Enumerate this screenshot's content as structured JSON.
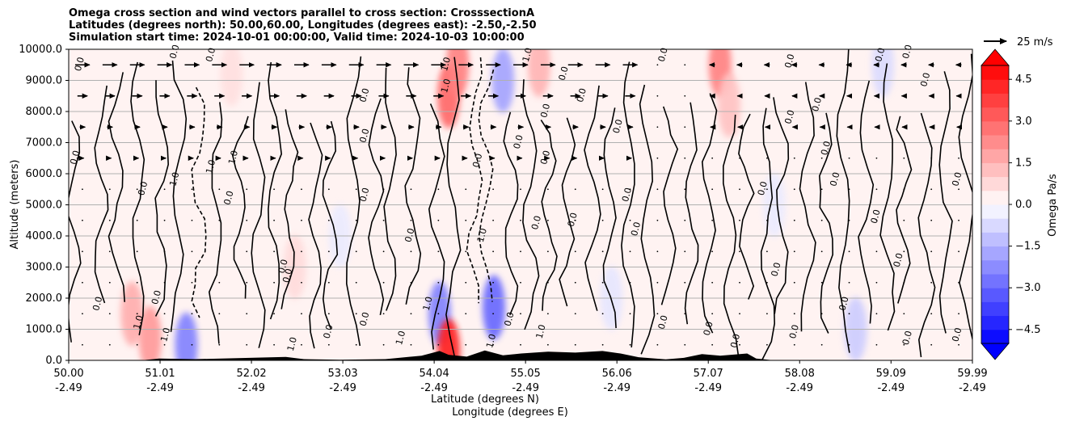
{
  "chart_data": {
    "type": "heatmap",
    "title_lines": [
      "Omega cross section and wind vectors parallel to cross section: CrosssectionA",
      "Latitudes (degrees north): 50.00,60.00, Longitudes (degrees east): -2.50,-2.50",
      "Simulation start time: 2024-10-01 00:00:00, Valid time: 2024-10-03 10:00:00"
    ],
    "xlabel_lines": [
      "Latitude (degrees N)",
      "Longitude (degrees E)"
    ],
    "ylabel": "Altitude (meters)",
    "x_range": [
      50.0,
      59.99
    ],
    "y_range": [
      0,
      10000
    ],
    "x_ticks": [
      {
        "lat": "50.00",
        "lon": "-2.49",
        "value": 50.0
      },
      {
        "lat": "51.01",
        "lon": "-2.49",
        "value": 51.01
      },
      {
        "lat": "52.02",
        "lon": "-2.49",
        "value": 52.02
      },
      {
        "lat": "53.03",
        "lon": "-2.49",
        "value": 53.03
      },
      {
        "lat": "54.04",
        "lon": "-2.49",
        "value": 54.04
      },
      {
        "lat": "55.05",
        "lon": "-2.49",
        "value": 55.05
      },
      {
        "lat": "56.06",
        "lon": "-2.49",
        "value": 56.06
      },
      {
        "lat": "57.07",
        "lon": "-2.49",
        "value": 57.07
      },
      {
        "lat": "58.08",
        "lon": "-2.49",
        "value": 58.08
      },
      {
        "lat": "59.09",
        "lon": "-2.49",
        "value": 59.09
      },
      {
        "lat": "59.99",
        "lon": "-2.49",
        "value": 59.99
      }
    ],
    "y_ticks": [
      {
        "label": "0.0",
        "value": 0
      },
      {
        "label": "1000.0",
        "value": 1000
      },
      {
        "label": "2000.0",
        "value": 2000
      },
      {
        "label": "3000.0",
        "value": 3000
      },
      {
        "label": "4000.0",
        "value": 4000
      },
      {
        "label": "5000.0",
        "value": 5000
      },
      {
        "label": "6000.0",
        "value": 6000
      },
      {
        "label": "7000.0",
        "value": 7000
      },
      {
        "label": "8000.0",
        "value": 8000
      },
      {
        "label": "9000.0",
        "value": 9000
      },
      {
        "label": "10000.0",
        "value": 10000
      }
    ],
    "colorbar": {
      "label": "Omega Pa/s",
      "range": [
        -5.0,
        5.0
      ],
      "ticks": [
        {
          "label": "4.5",
          "value": 4.5
        },
        {
          "label": "3.0",
          "value": 3.0
        },
        {
          "label": "1.5",
          "value": 1.5
        },
        {
          "label": "0.0",
          "value": 0.0
        },
        {
          "label": "−1.5",
          "value": -1.5
        },
        {
          "label": "−3.0",
          "value": -3.0
        },
        {
          "label": "−4.5",
          "value": -4.5
        }
      ],
      "colormap": "bwr",
      "levels": 20
    },
    "quiver_key": {
      "label": "25 m/s",
      "speed": 25
    },
    "wind_rows_altitude_m": [
      500,
      1500,
      2500,
      3500,
      4500,
      5500,
      6500,
      7500,
      8500,
      9500
    ],
    "wind_profile": [
      {
        "altitude": 9500,
        "u": 16,
        "from_lat": 50.0,
        "to_lat": 56.3
      },
      {
        "altitude": 9000,
        "u": 15,
        "from_lat": 50.0,
        "to_lat": 56.3
      },
      {
        "altitude": 8500,
        "u": 11,
        "from_lat": 50.0,
        "to_lat": 56.3
      },
      {
        "altitude": 8000,
        "u": 8,
        "from_lat": 50.0,
        "to_lat": 56.3
      },
      {
        "altitude": 7500,
        "u": 6,
        "from_lat": 50.0,
        "to_lat": 56.3
      },
      {
        "altitude": 6500,
        "u": 3,
        "from_lat": 50.0,
        "to_lat": 56.3
      },
      {
        "altitude": 5500,
        "u": 1,
        "from_lat": 50.0,
        "to_lat": 56.3
      },
      {
        "altitude": 4500,
        "u": 0.5,
        "from_lat": 50.0,
        "to_lat": 56.3
      },
      {
        "altitude": 9500,
        "u": -6,
        "from_lat": 57.0,
        "to_lat": 59.99
      },
      {
        "altitude": 8500,
        "u": -5,
        "from_lat": 57.0,
        "to_lat": 59.99
      },
      {
        "altitude": 7500,
        "u": -4,
        "from_lat": 57.0,
        "to_lat": 59.99
      }
    ],
    "omega_anomalies": [
      {
        "lat": 50.7,
        "z": 1500,
        "value": 1.6
      },
      {
        "lat": 50.9,
        "z": 700,
        "value": 2.0
      },
      {
        "lat": 51.3,
        "z": 500,
        "value": -2.5
      },
      {
        "lat": 51.8,
        "z": 9200,
        "value": 0.6
      },
      {
        "lat": 54.2,
        "z": 8500,
        "value": 3.0
      },
      {
        "lat": 54.3,
        "z": 9500,
        "value": 2.5
      },
      {
        "lat": 54.1,
        "z": 1500,
        "value": -2.5
      },
      {
        "lat": 54.2,
        "z": 300,
        "value": 4.5
      },
      {
        "lat": 54.7,
        "z": 1700,
        "value": -3.0
      },
      {
        "lat": 54.8,
        "z": 9000,
        "value": -1.8
      },
      {
        "lat": 55.2,
        "z": 9500,
        "value": 1.5
      },
      {
        "lat": 57.2,
        "z": 9500,
        "value": 2.5
      },
      {
        "lat": 57.3,
        "z": 8200,
        "value": 1.2
      },
      {
        "lat": 58.7,
        "z": 1000,
        "value": -1.0
      },
      {
        "lat": 59.0,
        "z": 9500,
        "value": -0.7
      },
      {
        "lat": 52.5,
        "z": 3000,
        "value": 0.7
      },
      {
        "lat": 53.0,
        "z": 4000,
        "value": -0.4
      },
      {
        "lat": 56.0,
        "z": 2000,
        "value": -0.5
      },
      {
        "lat": 57.8,
        "z": 5000,
        "value": -0.4
      }
    ],
    "contour_levels": [
      -1.0,
      0.0,
      1.0
    ],
    "contour_labels": [
      {
        "text": "0.0",
        "lat": 50.1,
        "z": 6500
      },
      {
        "text": "0.0",
        "lat": 50.15,
        "z": 9500
      },
      {
        "text": "0.0",
        "lat": 50.35,
        "z": 1800
      },
      {
        "text": "0.0",
        "lat": 50.85,
        "z": 5500
      },
      {
        "text": "1.0",
        "lat": 51.2,
        "z": 5800
      },
      {
        "text": "1.0",
        "lat": 51.6,
        "z": 6200
      },
      {
        "text": "1.0",
        "lat": 51.85,
        "z": 6500
      },
      {
        "text": "0.0",
        "lat": 51.2,
        "z": 9900
      },
      {
        "text": "0.0",
        "lat": 51.6,
        "z": 9800
      },
      {
        "text": "0.0",
        "lat": 51.8,
        "z": 5200
      },
      {
        "text": "1.0",
        "lat": 50.8,
        "z": 1200
      },
      {
        "text": "1.0",
        "lat": 51.1,
        "z": 800
      },
      {
        "text": "0.0",
        "lat": 51.0,
        "z": 2000
      },
      {
        "text": "0.0",
        "lat": 52.45,
        "z": 2700
      },
      {
        "text": "0.0",
        "lat": 52.4,
        "z": 3000
      },
      {
        "text": "1.0",
        "lat": 52.5,
        "z": 500
      },
      {
        "text": "0.0",
        "lat": 52.9,
        "z": 900
      },
      {
        "text": "0.0",
        "lat": 53.3,
        "z": 7200
      },
      {
        "text": "0.0",
        "lat": 53.3,
        "z": 8500
      },
      {
        "text": "0.0",
        "lat": 53.3,
        "z": 5300
      },
      {
        "text": "0.0",
        "lat": 53.8,
        "z": 4000
      },
      {
        "text": "0.0",
        "lat": 53.3,
        "z": 1300
      },
      {
        "text": "1.0",
        "lat": 53.7,
        "z": 700
      },
      {
        "text": "1.0",
        "lat": 54.0,
        "z": 1800
      },
      {
        "text": "1.0",
        "lat": 54.2,
        "z": 9500
      },
      {
        "text": "1.0",
        "lat": 54.2,
        "z": 8800
      },
      {
        "text": "1.0",
        "lat": 54.6,
        "z": 4000
      },
      {
        "text": "0.0",
        "lat": 54.55,
        "z": 6400
      },
      {
        "text": "1.0",
        "lat": 54.7,
        "z": 600
      },
      {
        "text": "0.0",
        "lat": 54.9,
        "z": 1300
      },
      {
        "text": "0.0",
        "lat": 55.0,
        "z": 7000
      },
      {
        "text": "0.0",
        "lat": 55.2,
        "z": 4400
      },
      {
        "text": "0.0",
        "lat": 55.3,
        "z": 6500
      },
      {
        "text": "0.0",
        "lat": 55.3,
        "z": 8000
      },
      {
        "text": "1.0",
        "lat": 55.1,
        "z": 9800
      },
      {
        "text": "1.0",
        "lat": 55.25,
        "z": 900
      },
      {
        "text": "0.0",
        "lat": 55.5,
        "z": 9200
      },
      {
        "text": "0.0",
        "lat": 55.6,
        "z": 4500
      },
      {
        "text": "0.0",
        "lat": 55.7,
        "z": 8500
      },
      {
        "text": "0.0",
        "lat": 56.1,
        "z": 7500
      },
      {
        "text": "0.0",
        "lat": 56.2,
        "z": 5300
      },
      {
        "text": "0.0",
        "lat": 56.3,
        "z": 4200
      },
      {
        "text": "0.0",
        "lat": 56.6,
        "z": 1200
      },
      {
        "text": "0.0",
        "lat": 56.6,
        "z": 9800
      },
      {
        "text": "0.0",
        "lat": 57.1,
        "z": 1000
      },
      {
        "text": "0.0",
        "lat": 57.4,
        "z": 600
      },
      {
        "text": "0.0",
        "lat": 57.7,
        "z": 5500
      },
      {
        "text": "0.0",
        "lat": 57.85,
        "z": 2900
      },
      {
        "text": "0.0",
        "lat": 58.0,
        "z": 7800
      },
      {
        "text": "0.0",
        "lat": 58.0,
        "z": 9600
      },
      {
        "text": "0.0",
        "lat": 58.3,
        "z": 8200
      },
      {
        "text": "0.0",
        "lat": 58.05,
        "z": 900
      },
      {
        "text": "0.0",
        "lat": 58.4,
        "z": 6800
      },
      {
        "text": "0.0",
        "lat": 58.5,
        "z": 5800
      },
      {
        "text": "0.0",
        "lat": 58.95,
        "z": 4600
      },
      {
        "text": "0.0",
        "lat": 58.6,
        "z": 1800
      },
      {
        "text": "0.0",
        "lat": 59.0,
        "z": 9800
      },
      {
        "text": "0.0",
        "lat": 59.3,
        "z": 9900
      },
      {
        "text": "0.0",
        "lat": 59.2,
        "z": 3200
      },
      {
        "text": "0.0",
        "lat": 59.3,
        "z": 700
      },
      {
        "text": "0.0",
        "lat": 59.5,
        "z": 9000
      },
      {
        "text": "0.0",
        "lat": 59.85,
        "z": 5800
      },
      {
        "text": "0.0",
        "lat": 59.85,
        "z": 800
      }
    ],
    "terrain": [
      {
        "lat": 50.0,
        "elevation": 0
      },
      {
        "lat": 50.8,
        "elevation": 0
      },
      {
        "lat": 51.0,
        "elevation": 60
      },
      {
        "lat": 51.4,
        "elevation": 40
      },
      {
        "lat": 52.0,
        "elevation": 80
      },
      {
        "lat": 52.4,
        "elevation": 110
      },
      {
        "lat": 52.6,
        "elevation": 40
      },
      {
        "lat": 53.0,
        "elevation": 20
      },
      {
        "lat": 53.5,
        "elevation": 40
      },
      {
        "lat": 53.9,
        "elevation": 150
      },
      {
        "lat": 54.1,
        "elevation": 300
      },
      {
        "lat": 54.2,
        "elevation": 180
      },
      {
        "lat": 54.4,
        "elevation": 120
      },
      {
        "lat": 54.6,
        "elevation": 320
      },
      {
        "lat": 54.8,
        "elevation": 160
      },
      {
        "lat": 55.0,
        "elevation": 220
      },
      {
        "lat": 55.3,
        "elevation": 280
      },
      {
        "lat": 55.6,
        "elevation": 250
      },
      {
        "lat": 55.9,
        "elevation": 300
      },
      {
        "lat": 56.1,
        "elevation": 220
      },
      {
        "lat": 56.3,
        "elevation": 100
      },
      {
        "lat": 56.6,
        "elevation": 30
      },
      {
        "lat": 56.8,
        "elevation": 80
      },
      {
        "lat": 57.0,
        "elevation": 200
      },
      {
        "lat": 57.2,
        "elevation": 150
      },
      {
        "lat": 57.5,
        "elevation": 220
      },
      {
        "lat": 57.6,
        "elevation": 60
      },
      {
        "lat": 57.8,
        "elevation": 0
      },
      {
        "lat": 59.99,
        "elevation": 0
      }
    ]
  }
}
